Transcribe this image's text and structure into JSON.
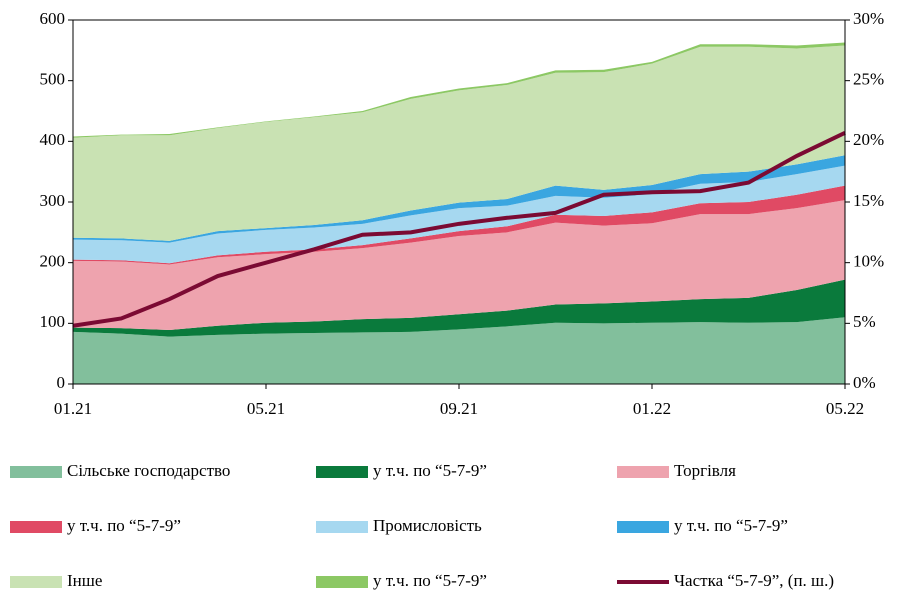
{
  "chart_data": {
    "type": "stacked_area",
    "categories": [
      "01.21",
      null,
      null,
      null,
      "05.21",
      null,
      null,
      null,
      "09.21",
      null,
      null,
      null,
      "01.22",
      null,
      null,
      null,
      "05.22"
    ],
    "series": [
      {
        "name": "Сільське господарство",
        "color": "#82bf9c",
        "values": [
          86,
          83,
          78,
          81,
          83,
          84,
          85,
          86,
          90,
          95,
          101,
          100,
          101,
          102,
          101,
          102,
          110
        ]
      },
      {
        "name": "у т.ч. по “5-7-9”",
        "color": "#0a7a3c",
        "values": [
          7,
          9,
          11,
          15,
          18,
          19,
          22,
          23,
          25,
          26,
          30,
          33,
          35,
          38,
          41,
          53,
          62
        ]
      },
      {
        "name": "Торгівля",
        "color": "#eea3ae",
        "values": [
          110,
          110,
          108,
          113,
          113,
          115,
          117,
          124,
          129,
          129,
          135,
          128,
          129,
          140,
          138,
          135,
          131
        ]
      },
      {
        "name": "у т.ч. по “5-7-9”",
        "color": "#e04a64",
        "values": [
          2,
          2,
          2,
          3,
          4,
          4,
          5,
          7,
          8,
          10,
          13,
          16,
          18,
          18,
          20,
          22,
          24
        ]
      },
      {
        "name": "Промисловість",
        "color": "#a6d8f0",
        "values": [
          33,
          33,
          34,
          36,
          36,
          36,
          35,
          38,
          38,
          34,
          31,
          30,
          30,
          32,
          33,
          34,
          33
        ]
      },
      {
        "name": "у т.ч. по “5-7-9”",
        "color": "#3aa6e0",
        "values": [
          3,
          3,
          3,
          4,
          3,
          4,
          6,
          8,
          9,
          11,
          17,
          13,
          15,
          16,
          17,
          16,
          17
        ]
      },
      {
        "name": "Інше",
        "color": "#c9e2b3",
        "values": [
          165,
          170,
          174,
          170,
          175,
          178,
          178,
          184,
          185,
          188,
          186,
          194,
          200,
          210,
          206,
          191,
          181
        ]
      },
      {
        "name": "у т.ч. по “5-7-9”",
        "color": "#8cc864",
        "values": [
          2,
          1,
          2,
          1,
          1,
          1,
          2,
          3,
          3,
          3,
          4,
          4,
          3,
          4,
          4,
          5,
          5
        ]
      },
      {
        "name": "Частка “5-7-9”, (п. ш.)",
        "color": "#7b0a33",
        "axis": "y2",
        "type": "line",
        "values": [
          4.8,
          5.4,
          7.0,
          8.9,
          10.0,
          11.1,
          12.3,
          12.5,
          13.2,
          13.7,
          14.1,
          15.6,
          15.8,
          15.9,
          16.6,
          18.8,
          20.7
        ]
      }
    ],
    "ylim": [
      0,
      600
    ],
    "yticks": [
      0,
      100,
      200,
      300,
      400,
      500,
      600
    ],
    "y2lim": [
      0,
      30
    ],
    "y2ticks": [
      {
        "value": 0,
        "label": "0%"
      },
      {
        "value": 5,
        "label": "5%"
      },
      {
        "value": 10,
        "label": "10%"
      },
      {
        "value": 15,
        "label": "15%"
      },
      {
        "value": 20,
        "label": "20%"
      },
      {
        "value": 25,
        "label": "25%"
      },
      {
        "value": 30,
        "label": "30%"
      }
    ],
    "legend": "bottom"
  }
}
